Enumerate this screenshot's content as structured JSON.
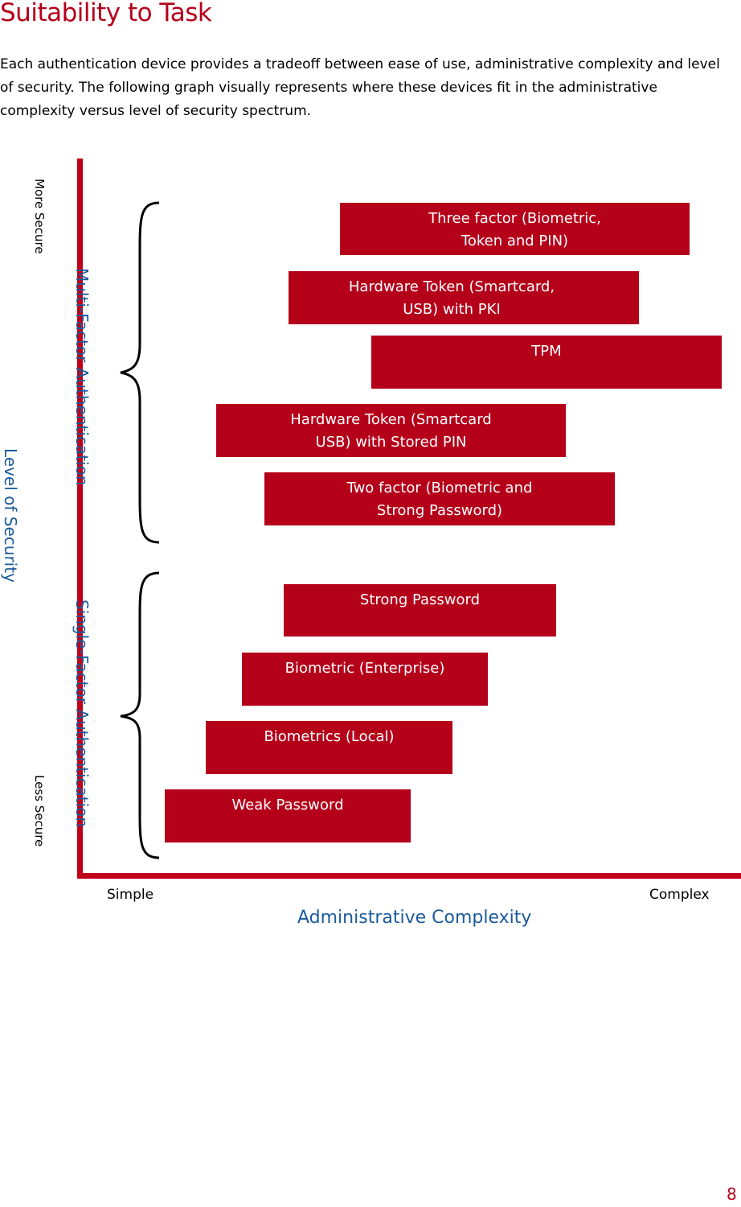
{
  "title": "Suitability to Task",
  "intro": "Each authentication device provides a tradeoff between ease of use, administrative complexity and level of security.  The following graph visually represents where these devices fit in the administrative complexity versus level of security spectrum.",
  "diagram": {
    "y_axis": {
      "title": "Level of Security",
      "top_label": "More Secure",
      "bottom_label": "Less Secure"
    },
    "x_axis": {
      "title": "Administrative Complexity",
      "left_label": "Simple",
      "right_label": "Complex"
    },
    "groups": {
      "multi": "Multi-Factor Authentication",
      "single": "Single-Factor Authentication"
    },
    "colors": {
      "bar": "#b5001a",
      "axis": "#c0001a",
      "accent_text": "#1a5a9c"
    },
    "bars": [
      {
        "label": "Three factor (Biometric,\nToken and PIN)"
      },
      {
        "label": "Hardware Token (Smartcard,\nUSB) with PKI"
      },
      {
        "label": "TPM"
      },
      {
        "label": "Hardware Token (Smartcard\nUSB) with Stored PIN"
      },
      {
        "label": "Two factor (Biometric and\nStrong Password)"
      },
      {
        "label": "Strong Password"
      },
      {
        "label": "Biometric (Enterprise)"
      },
      {
        "label": "Biometrics (Local)"
      },
      {
        "label": "Weak Password"
      }
    ]
  },
  "page_number": "8"
}
